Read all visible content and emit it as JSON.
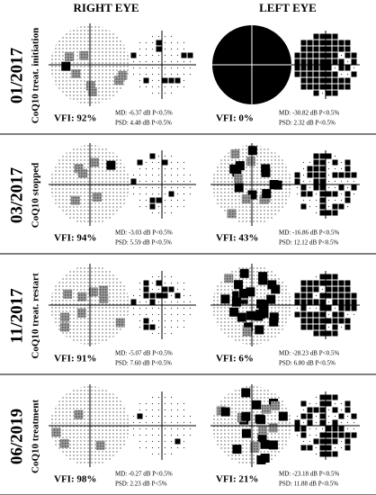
{
  "header": {
    "right": "RIGHT EYE",
    "left": "LEFT EYE"
  },
  "rows": [
    {
      "date": "01/2017",
      "label": "CoQ10 treat. initiation",
      "right": {
        "vfi": "VFI: 92%",
        "md": "MD: -6.37 dB P<0.5%",
        "psd": "PSD: 4.48 dB P<0.5%"
      },
      "left": {
        "vfi": "VFI: 0%",
        "md": "MD: -30.82 dB P<0.5%",
        "psd": "PSD: 2.32 dB P<0.5%"
      }
    },
    {
      "date": "03/2017",
      "label": "CoQ10 stopped",
      "right": {
        "vfi": "VFI: 94%",
        "md": "MD: -3.03 dB P<0.5%",
        "psd": "PSD: 5.59 dB P<0.5%"
      },
      "left": {
        "vfi": "VFI: 43%",
        "md": "MD: -16.86 dB P<0.5%",
        "psd": "PSD: 12.12 dB P<0.5%"
      }
    },
    {
      "date": "11/2017",
      "label": "CoQ10 treat. restart",
      "right": {
        "vfi": "VFI: 91%",
        "md": "MD: -5.07 dB P<0.5%",
        "psd": "PSD: 7.60 dB P<0.5%"
      },
      "left": {
        "vfi": "VFI: 6%",
        "md": "MD: -28.23 dB P<0.5%",
        "psd": "PSD: 6.80 dB P<0.5%"
      }
    },
    {
      "date": "06/2019",
      "label": "CoQ10 treatment",
      "right": {
        "vfi": "VFI: 98%",
        "md": "MD: -0.27 dB P<0.5%",
        "psd": "PSD: 2.23 dB P<5%"
      },
      "left": {
        "vfi": "VFI: 21%",
        "md": "MD: -23.18 dB P<0.5%",
        "psd": "PSD: 11.88 dB P<0.5%"
      }
    }
  ]
}
